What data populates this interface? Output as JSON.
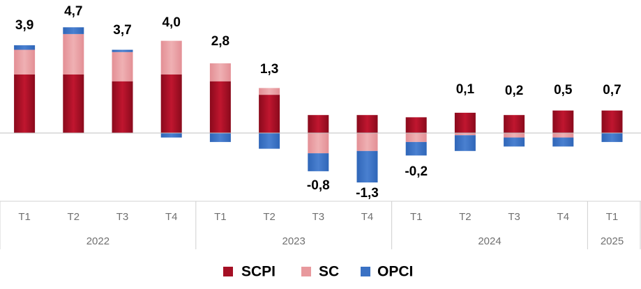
{
  "chart_data": {
    "type": "bar",
    "stacked": true,
    "categories": [
      "T1",
      "T2",
      "T3",
      "T4",
      "T1",
      "T2",
      "T3",
      "T4",
      "T1",
      "T2",
      "T3",
      "T4",
      "T1"
    ],
    "groups": [
      {
        "label": "2022",
        "count": 4
      },
      {
        "label": "2023",
        "count": 4
      },
      {
        "label": "2024",
        "count": 4
      },
      {
        "label": "2025",
        "count": 1
      }
    ],
    "series": [
      {
        "name": "SCPI",
        "color": "#a50f24",
        "values": [
          2.6,
          2.6,
          2.3,
          2.6,
          2.3,
          1.7,
          0.8,
          0.8,
          0.7,
          0.9,
          0.8,
          1.0,
          1.0
        ]
      },
      {
        "name": "SC",
        "color": "#e8999d",
        "values": [
          1.1,
          1.8,
          1.3,
          1.5,
          0.8,
          0.3,
          -0.9,
          -0.8,
          -0.4,
          -0.1,
          -0.2,
          -0.2,
          0.0
        ]
      },
      {
        "name": "OPCI",
        "color": "#3a71c4",
        "values": [
          0.2,
          0.3,
          0.1,
          -0.2,
          -0.4,
          -0.7,
          -0.8,
          -1.4,
          -0.6,
          -0.7,
          -0.4,
          -0.4,
          -0.4
        ]
      }
    ],
    "totals": [
      "3,9",
      "4,7",
      "3,7",
      "4,0",
      "2,8",
      "1,3",
      "-0,8",
      "-1,3",
      "-0,2",
      "0,1",
      "0,2",
      "0,5",
      "0,7"
    ],
    "total_values": [
      3.9,
      4.7,
      3.7,
      4.0,
      2.8,
      1.3,
      -0.8,
      -1.3,
      -0.2,
      0.1,
      0.2,
      0.5,
      0.7
    ],
    "legend": {
      "placement": "bottom",
      "entries": [
        "SCPI",
        "SC",
        "OPCI"
      ]
    },
    "grid": false
  }
}
